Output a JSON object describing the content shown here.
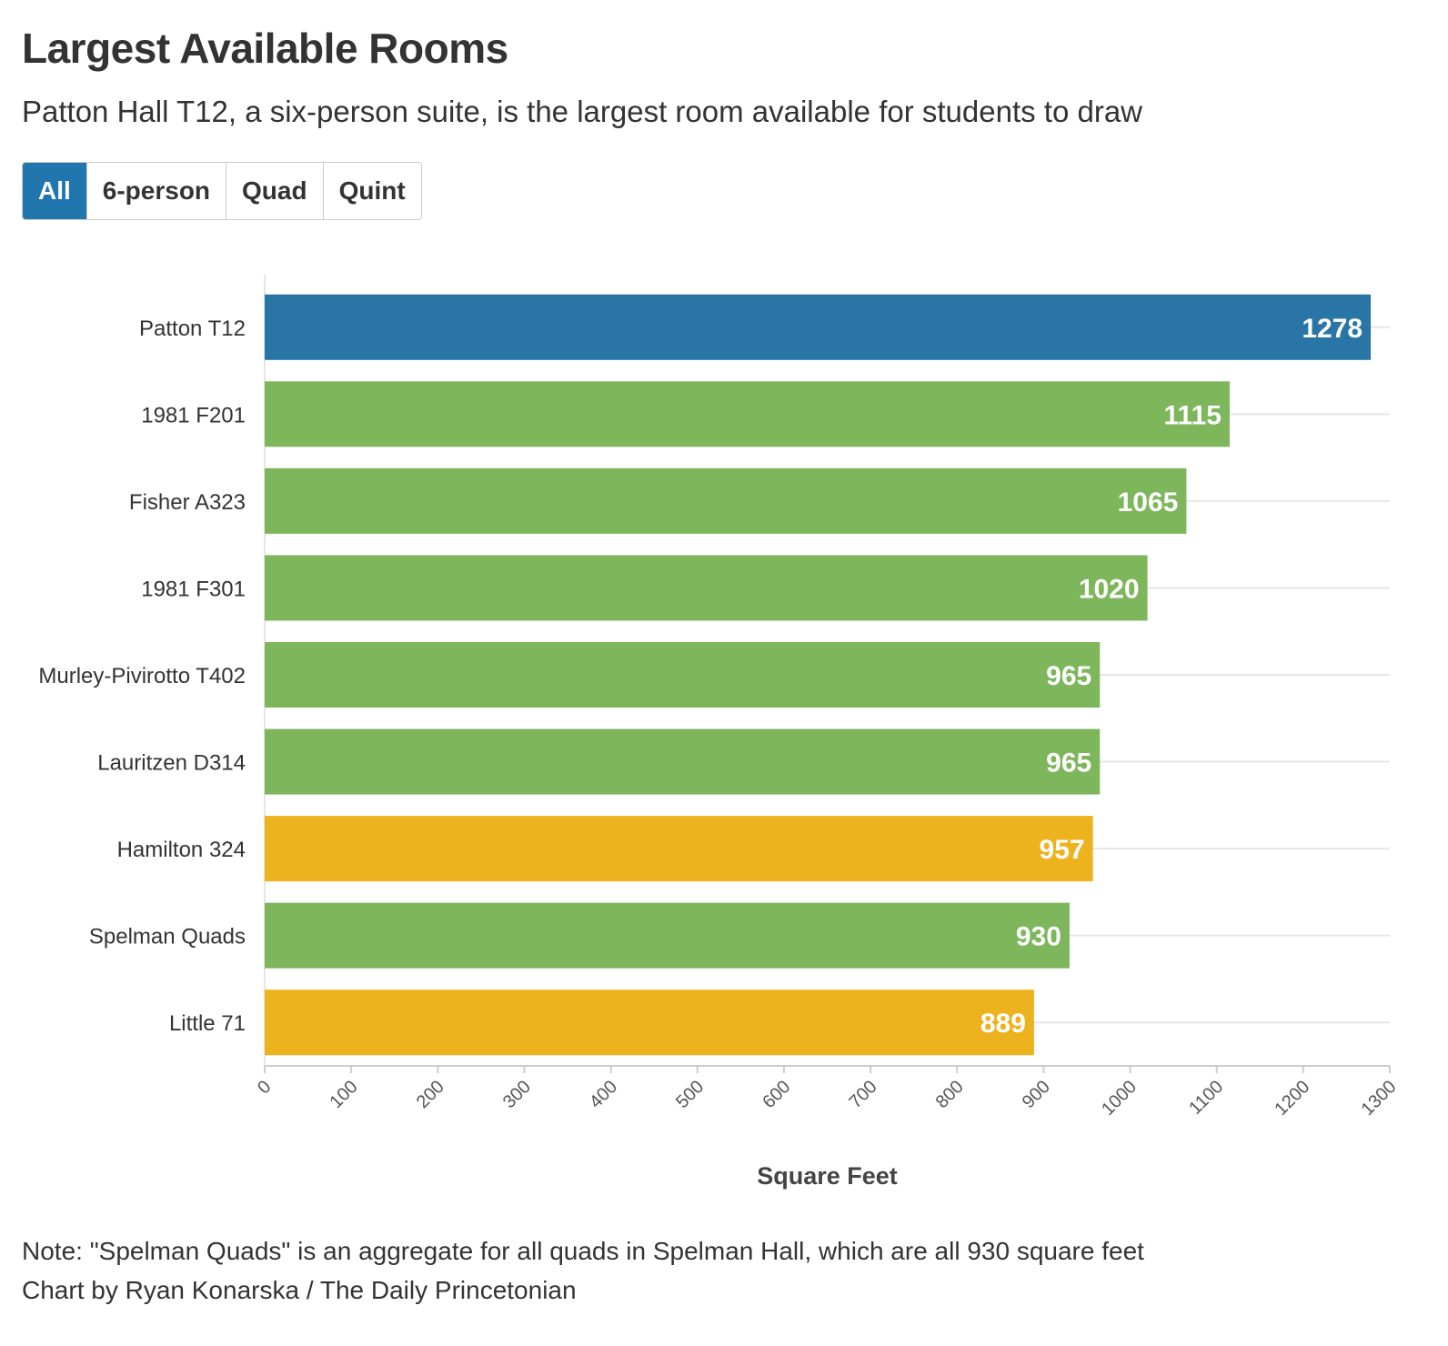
{
  "header": {
    "title": "Largest Available Rooms",
    "subtitle": "Patton Hall T12, a six-person suite, is the largest room available for students to draw"
  },
  "filters": [
    {
      "label": "All",
      "active": true
    },
    {
      "label": "6-person",
      "active": false
    },
    {
      "label": "Quad",
      "active": false
    },
    {
      "label": "Quint",
      "active": false
    }
  ],
  "colors": {
    "sixperson": "#2976a6",
    "quad": "#7db65b",
    "quint": "#ecb31e",
    "gridline": "#e6e6e6",
    "axis": "#cccccc"
  },
  "chart_data": {
    "type": "bar",
    "orientation": "horizontal",
    "categories": [
      "Patton T12",
      "1981 F201",
      "Fisher A323",
      "1981 F301",
      "Murley-Pivirotto T402",
      "Lauritzen D314",
      "Hamilton 324",
      "Spelman Quads",
      "Little 71"
    ],
    "values": [
      1278,
      1115,
      1065,
      1020,
      965,
      965,
      957,
      930,
      889
    ],
    "groups": [
      "sixperson",
      "quad",
      "quad",
      "quad",
      "quad",
      "quad",
      "quint",
      "quad",
      "quint"
    ],
    "xlabel": "Square Feet",
    "ylabel": "",
    "xlim": [
      0,
      1300
    ],
    "xticks": [
      0,
      100,
      200,
      300,
      400,
      500,
      600,
      700,
      800,
      900,
      1000,
      1100,
      1200,
      1300
    ],
    "grid": true,
    "data_labels": true
  },
  "footer": {
    "note": "Note: \"Spelman Quads\" is an aggregate for all quads in Spelman Hall, which are all 930 square feet",
    "credit": "Chart by Ryan Konarska / The Daily Princetonian"
  }
}
